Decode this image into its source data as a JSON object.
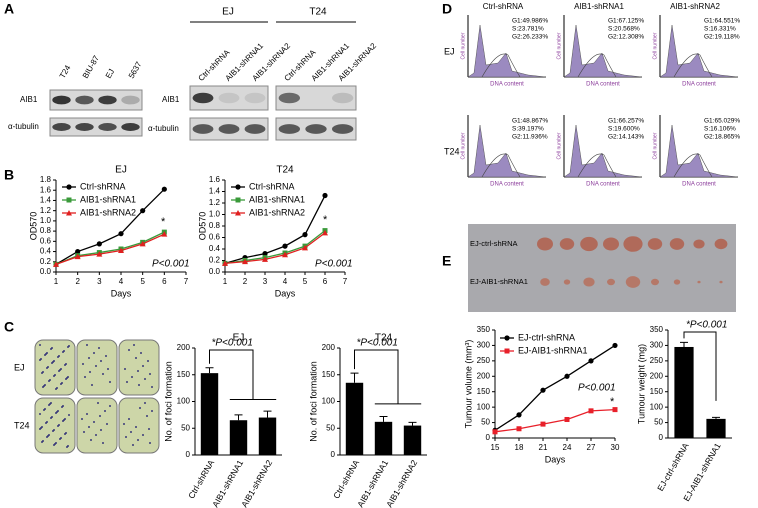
{
  "panel_labels": [
    "A",
    "B",
    "C",
    "D",
    "E"
  ],
  "blot_a": {
    "lanes1": [
      "T24",
      "BIU-87",
      "EJ",
      "5637"
    ],
    "rows": [
      "AIB1",
      "α-tubulin"
    ],
    "groups": [
      "EJ",
      "T24"
    ],
    "lanes2": [
      "Ctrl-shRNA",
      "AIB1-shRNA1",
      "AIB1-shRNA2",
      "Ctrl-shRNA",
      "AIB1-shRNA1",
      "AIB1-shRNA2"
    ]
  },
  "colony_c": {
    "rows": [
      "EJ",
      "T24"
    ]
  },
  "flow_d": {
    "columns": [
      "Ctrl-shRNA",
      "AIB1-shRNA1",
      "AIB1-shRNA2"
    ],
    "rows": [
      "EJ",
      "T24"
    ],
    "ylabel": "Cell number",
    "xlabel": "DNA content",
    "stats": [
      [
        "G1:49.986%",
        "S:23.781%",
        "G2:26.233%"
      ],
      [
        "G1:67.125%",
        "S:20.568%",
        "G2:12.308%"
      ],
      [
        "G1:64.551%",
        "S:16.331%",
        "G2:19.118%"
      ],
      [
        "G1:48.867%",
        "S:39.197%",
        "G2:11.936%"
      ],
      [
        "G1:66.257%",
        "S:19.600%",
        "G2:14.143%"
      ],
      [
        "G1:65.029%",
        "S:16.106%",
        "G2:18.865%"
      ]
    ]
  },
  "tumour_e": {
    "rows": [
      "EJ-ctrl-shRNA",
      "EJ-AIB1-shRNA1"
    ]
  },
  "chart_data": [
    {
      "type": "line",
      "title": "EJ",
      "xlabel": "Days",
      "ylabel": "OD570",
      "x": [
        1,
        2,
        3,
        4,
        5,
        6
      ],
      "xlim": [
        1,
        7
      ],
      "xticks": [
        1,
        2,
        3,
        4,
        5,
        6,
        7
      ],
      "ylim": [
        0,
        1.8
      ],
      "yticks": [
        {
          "value": 0,
          "label": "0.0"
        },
        0.2,
        0.4,
        0.6,
        0.8,
        {
          "value": 1,
          "label": "1.0"
        },
        1.2,
        1.4,
        1.6,
        1.8
      ],
      "series": [
        {
          "name": "Ctrl-shRNA",
          "color": "#000000",
          "marker": "circle",
          "values": [
            0.15,
            0.4,
            0.55,
            0.75,
            1.2,
            1.62
          ]
        },
        {
          "name": "AIB1-shRNA1",
          "color": "#3a9a3a",
          "marker": "square",
          "values": [
            0.15,
            0.32,
            0.38,
            0.45,
            0.58,
            0.78
          ]
        },
        {
          "name": "AIB1-shRNA2",
          "color": "#e02020",
          "marker": "triangle",
          "values": [
            0.15,
            0.3,
            0.35,
            0.42,
            0.55,
            0.74
          ]
        }
      ],
      "annotations": [
        "*",
        "P<0.001"
      ]
    },
    {
      "type": "line",
      "title": "T24",
      "xlabel": "Days",
      "ylabel": "OD570",
      "x": [
        1,
        2,
        3,
        4,
        5,
        6
      ],
      "xlim": [
        1,
        7
      ],
      "xticks": [
        1,
        2,
        3,
        4,
        5,
        6,
        7
      ],
      "ylim": [
        0,
        1.6
      ],
      "yticks": [
        {
          "value": 0,
          "label": "0.0"
        },
        0.2,
        0.4,
        0.6,
        0.8,
        {
          "value": 1,
          "label": "1.0"
        },
        1.2,
        1.4,
        1.6
      ],
      "series": [
        {
          "name": "Ctrl-shRNA",
          "color": "#000000",
          "marker": "circle",
          "values": [
            0.15,
            0.25,
            0.32,
            0.45,
            0.65,
            1.33
          ]
        },
        {
          "name": "AIB1-shRNA1",
          "color": "#3a9a3a",
          "marker": "square",
          "values": [
            0.15,
            0.2,
            0.25,
            0.33,
            0.45,
            0.72
          ]
        },
        {
          "name": "AIB1-shRNA2",
          "color": "#e02020",
          "marker": "triangle",
          "values": [
            0.15,
            0.18,
            0.22,
            0.3,
            0.42,
            0.68
          ]
        }
      ],
      "annotations": [
        "*",
        "P<0.001"
      ]
    },
    {
      "type": "bar",
      "title": "EJ",
      "ylabel": "No. of foci formation",
      "categories": [
        "Ctrl-shRNA",
        "AIB1-shRNA1",
        "AIB1-shRNA2"
      ],
      "values": [
        153,
        65,
        70
      ],
      "errors": [
        10,
        10,
        12
      ],
      "color": "#000000",
      "ylim": [
        0,
        200
      ],
      "yticks": [
        0,
        50,
        100,
        150,
        200
      ],
      "annotations": [
        "*P<0.001"
      ]
    },
    {
      "type": "bar",
      "title": "T24",
      "ylabel": "No. of foci formation",
      "categories": [
        "Ctrl-shRNA",
        "AIB1-shRNA1",
        "AIB1-shRNA2"
      ],
      "values": [
        135,
        62,
        55
      ],
      "errors": [
        18,
        10,
        6
      ],
      "color": "#000000",
      "ylim": [
        0,
        200
      ],
      "yticks": [
        0,
        50,
        100,
        150,
        200
      ],
      "annotations": [
        "*P<0.001"
      ]
    },
    {
      "type": "line",
      "xlabel": "Days",
      "ylabel": "Tumour volume (mm³)",
      "x": [
        15,
        18,
        21,
        24,
        27,
        30
      ],
      "xlim": [
        15,
        30
      ],
      "xticks": [
        15,
        18,
        21,
        24,
        27,
        30
      ],
      "ylim": [
        0,
        350
      ],
      "yticks": [
        0,
        50,
        100,
        150,
        200,
        250,
        300,
        350
      ],
      "series": [
        {
          "name": "EJ-ctrl-shRNA",
          "color": "#000000",
          "marker": "circle",
          "values": [
            25,
            75,
            155,
            200,
            250,
            300
          ]
        },
        {
          "name": "EJ-AIB1-shRNA1",
          "color": "#e8202a",
          "marker": "square",
          "values": [
            20,
            30,
            45,
            60,
            88,
            92
          ]
        }
      ],
      "annotations": [
        "*",
        "P<0.001"
      ]
    },
    {
      "type": "bar",
      "ylabel": "Tumour weight (mg)",
      "categories": [
        "EJ-ctrl-shRNA",
        "EJ-AIB1-shRNA1"
      ],
      "values": [
        295,
        62
      ],
      "errors": [
        15,
        5
      ],
      "color": "#000000",
      "ylim": [
        0,
        350
      ],
      "yticks": [
        0,
        50,
        100,
        150,
        200,
        250,
        300,
        350
      ],
      "annotations": [
        "*P<0.001"
      ]
    }
  ]
}
